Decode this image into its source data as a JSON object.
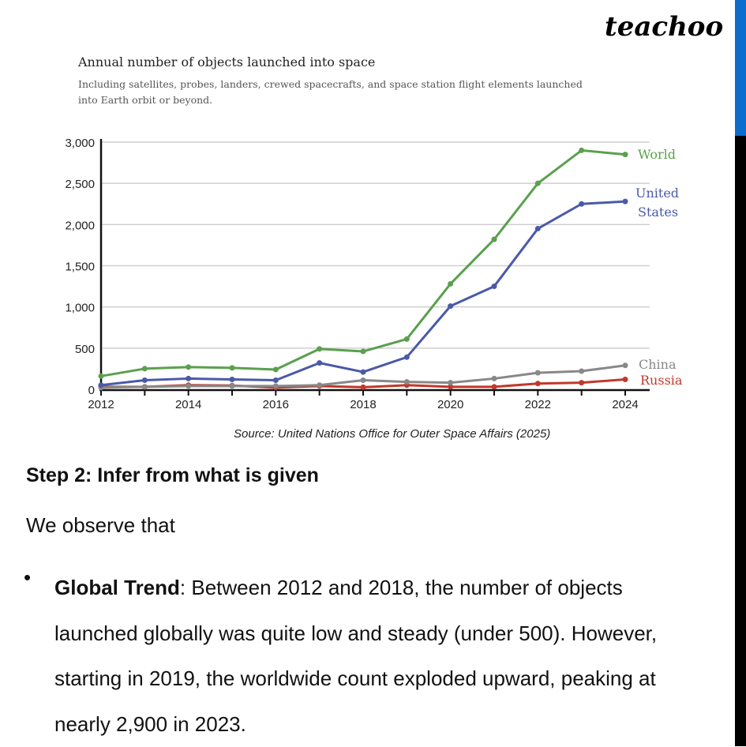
{
  "logo": "teachoo",
  "chart_data": {
    "type": "line",
    "title": "Annual number of objects launched into space",
    "subtitle": "Including satellites, probes, landers, crewed spacecrafts, and space station flight elements launched into Earth orbit or beyond.",
    "source": "Source: United Nations Office for Outer Space Affairs (2025)",
    "x": [
      2012,
      2013,
      2014,
      2015,
      2016,
      2017,
      2018,
      2019,
      2020,
      2021,
      2022,
      2023,
      2024
    ],
    "xticks": [
      "2012",
      "2014",
      "2016",
      "2018",
      "2020",
      "2022",
      "2024"
    ],
    "yticks": [
      "0",
      "500",
      "1,000",
      "1,500",
      "2,000",
      "2,500",
      "3,000"
    ],
    "ylim": [
      0,
      3000
    ],
    "xlim": [
      2012,
      2024
    ],
    "grid": "horizontal",
    "legend": "inline-right",
    "series": [
      {
        "name": "World",
        "color": "#5aa04e",
        "values": [
          160,
          250,
          270,
          260,
          240,
          490,
          460,
          610,
          1280,
          1820,
          2500,
          2900,
          2850
        ]
      },
      {
        "name": "United States",
        "name_lines": [
          "United",
          "States"
        ],
        "color": "#4a5aa8",
        "values": [
          50,
          110,
          130,
          120,
          110,
          320,
          210,
          390,
          1010,
          1250,
          1950,
          2250,
          2280
        ]
      },
      {
        "name": "China",
        "color": "#888888",
        "values": [
          20,
          30,
          40,
          40,
          40,
          50,
          110,
          90,
          80,
          130,
          200,
          220,
          290
        ]
      },
      {
        "name": "Russia",
        "color": "#c0392b",
        "values": [
          30,
          30,
          50,
          45,
          20,
          40,
          25,
          50,
          30,
          30,
          70,
          80,
          120
        ]
      }
    ]
  },
  "text": {
    "step": "Step 2: Infer from what is given",
    "observe": "We observe that",
    "bullet_symbol": "•",
    "bullet_title": "Global Trend",
    "bullet_body": ": Between 2012 and 2018, the number of objects launched globally was quite low and steady (under 500). However, starting in 2019, the worldwide count exploded upward, peaking at nearly 2,900 in 2023."
  }
}
